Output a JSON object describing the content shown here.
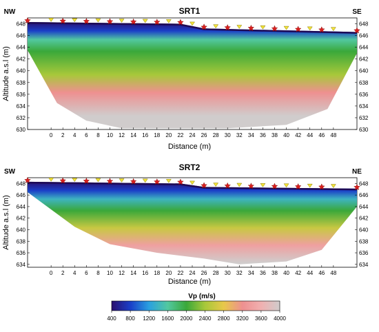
{
  "chart_data": [
    {
      "type": "heatmap",
      "title": "SRT1",
      "left_label": "NW",
      "right_label": "SE",
      "xlabel": "Distance (m)",
      "ylabel": "Altitude a.s.l (m)",
      "xlim": [
        -4,
        52
      ],
      "ylim": [
        630,
        649
      ],
      "x_ticks": [
        0,
        2,
        4,
        6,
        8,
        10,
        12,
        14,
        16,
        18,
        20,
        22,
        24,
        26,
        28,
        30,
        32,
        34,
        36,
        38,
        40,
        42,
        44,
        46,
        48
      ],
      "y_ticks": [
        630,
        632,
        634,
        636,
        638,
        640,
        642,
        644,
        646,
        648
      ],
      "surface": [
        [
          -4,
          648.3
        ],
        [
          22,
          648.0
        ],
        [
          26,
          647.2
        ],
        [
          52,
          646.6
        ]
      ],
      "base": [
        [
          -4,
          643.5
        ],
        [
          1,
          634.5
        ],
        [
          6,
          631.5
        ],
        [
          12,
          630.2
        ],
        [
          30,
          630.2
        ],
        [
          40,
          630.8
        ],
        [
          47,
          633.5
        ],
        [
          52,
          643.0
        ]
      ],
      "velocity_layers": [
        {
          "altitude_below_surface": 0,
          "vp": 400
        },
        {
          "altitude_below_surface": 1.5,
          "vp": 800
        },
        {
          "altitude_below_surface": 3,
          "vp": 1600
        },
        {
          "altitude_below_surface": 5,
          "vp": 2000
        },
        {
          "altitude_below_surface": 9,
          "vp": 2400
        },
        {
          "altitude_below_surface": 12,
          "vp": 3200
        },
        {
          "altitude_below_surface": 16,
          "vp": 4000
        }
      ],
      "geophones_x": [
        0,
        4,
        8,
        12,
        16,
        20,
        24,
        28,
        32,
        36,
        40,
        44,
        48
      ],
      "shots_x": [
        -4,
        2,
        6,
        10,
        14,
        18,
        22,
        26,
        30,
        34,
        38,
        42,
        46,
        52
      ]
    },
    {
      "type": "heatmap",
      "title": "SRT2",
      "left_label": "SW",
      "right_label": "NE",
      "xlabel": "Distance (m)",
      "ylabel": "Altitude a.s.l (m)",
      "xlim": [
        -4,
        52
      ],
      "ylim": [
        633.5,
        649
      ],
      "x_ticks": [
        0,
        2,
        4,
        6,
        8,
        10,
        12,
        14,
        16,
        18,
        20,
        22,
        24,
        26,
        28,
        30,
        32,
        34,
        36,
        38,
        40,
        42,
        44,
        46,
        48
      ],
      "y_ticks": [
        634,
        636,
        638,
        640,
        642,
        644,
        646,
        648
      ],
      "surface": [
        [
          -4,
          648.3
        ],
        [
          22,
          648.0
        ],
        [
          26,
          647.4
        ],
        [
          52,
          647.1
        ]
      ],
      "base": [
        [
          -4,
          646.5
        ],
        [
          4,
          640.5
        ],
        [
          10,
          637.5
        ],
        [
          18,
          636.0
        ],
        [
          26,
          635.0
        ],
        [
          32,
          634.0
        ],
        [
          40,
          634.5
        ],
        [
          46,
          636.5
        ],
        [
          52,
          644.0
        ]
      ],
      "velocity_layers": [
        {
          "altitude_below_surface": 0,
          "vp": 400
        },
        {
          "altitude_below_surface": 1.5,
          "vp": 800
        },
        {
          "altitude_below_surface": 3,
          "vp": 1400
        },
        {
          "altitude_below_surface": 5,
          "vp": 2000
        },
        {
          "altitude_below_surface": 8,
          "vp": 2600
        },
        {
          "altitude_below_surface": 11,
          "vp": 3400
        },
        {
          "altitude_below_surface": 14,
          "vp": 4000
        }
      ],
      "geophones_x": [
        0,
        4,
        8,
        12,
        16,
        20,
        24,
        28,
        32,
        36,
        40,
        44,
        48
      ],
      "shots_x": [
        -4,
        2,
        6,
        10,
        14,
        18,
        22,
        26,
        30,
        34,
        38,
        42,
        46,
        52
      ]
    }
  ],
  "colorbar": {
    "label": "Vp (m/s)",
    "ticks": [
      400,
      800,
      1200,
      1600,
      2000,
      2400,
      2800,
      3200,
      3600,
      4000
    ],
    "range": [
      400,
      4000
    ],
    "colors": [
      "#2a0f6e",
      "#1a3ec8",
      "#2aa0e0",
      "#52c8a0",
      "#3aa83a",
      "#a8c83a",
      "#e8c84a",
      "#ee9090",
      "#f0b0b0",
      "#d0cccc"
    ]
  }
}
